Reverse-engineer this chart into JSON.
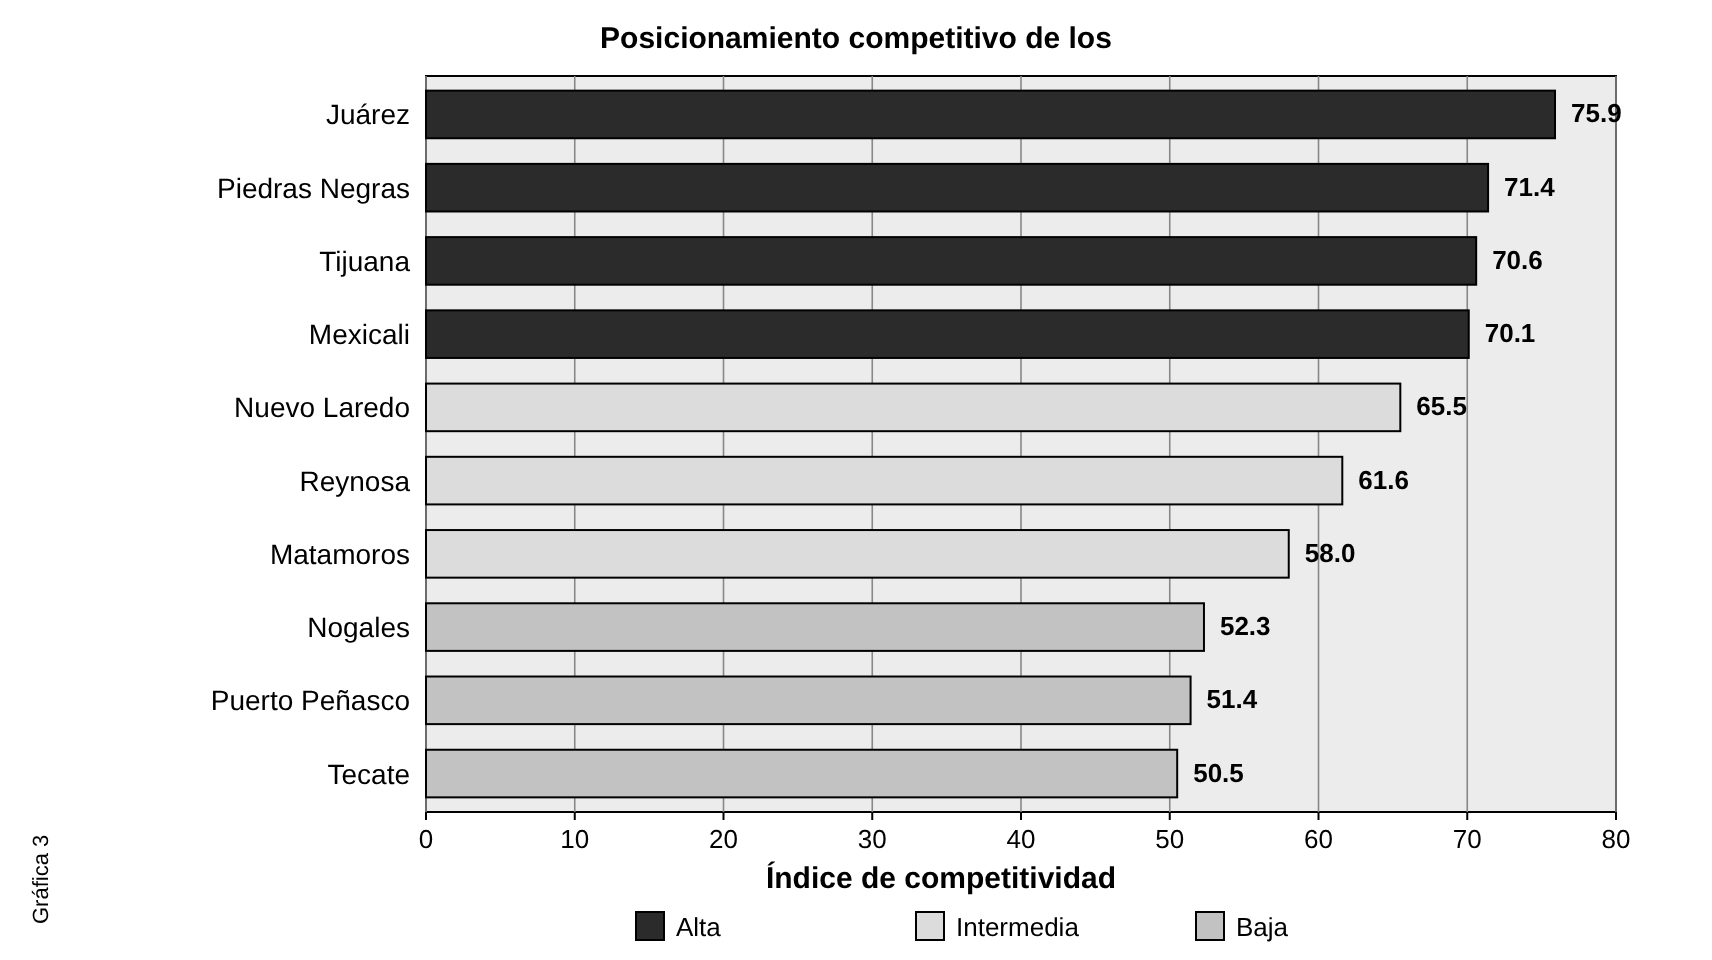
{
  "chart_data": {
    "type": "bar",
    "orientation": "horizontal",
    "title": "Posicionamiento competitivo de los",
    "xlabel": "Índice de competitividad",
    "categories": [
      "Juárez",
      "Piedras Negras",
      "Tijuana",
      "Mexicali",
      "Nuevo Laredo",
      "Reynosa",
      "Matamoros",
      "Nogales",
      "Puerto Peñasco",
      "Tecate"
    ],
    "series": [
      {
        "name": "Alta",
        "color": "#2b2b2b",
        "values": [
          75.9,
          71.4,
          70.6,
          70.1,
          null,
          null,
          null,
          null,
          null,
          null
        ]
      },
      {
        "name": "Intermedia",
        "color": "#dcdcdc",
        "values": [
          null,
          null,
          null,
          null,
          65.5,
          61.6,
          58.0,
          null,
          null,
          null
        ]
      },
      {
        "name": "Baja",
        "color": "#c2c2c2",
        "values": [
          null,
          null,
          null,
          null,
          null,
          null,
          null,
          52.3,
          51.4,
          50.5
        ]
      }
    ],
    "value_labels": [
      "75.9",
      "71.4",
      "70.6",
      "70.1",
      "65.5",
      "61.6",
      "58.0",
      "52.3",
      "51.4",
      "50.5"
    ],
    "xlim": [
      0,
      80
    ],
    "xticks": [
      0,
      10,
      20,
      30,
      40,
      50,
      60,
      70,
      80
    ],
    "grid": "x",
    "legend": "bottom",
    "annotations": [
      "Gráfica 3"
    ]
  }
}
